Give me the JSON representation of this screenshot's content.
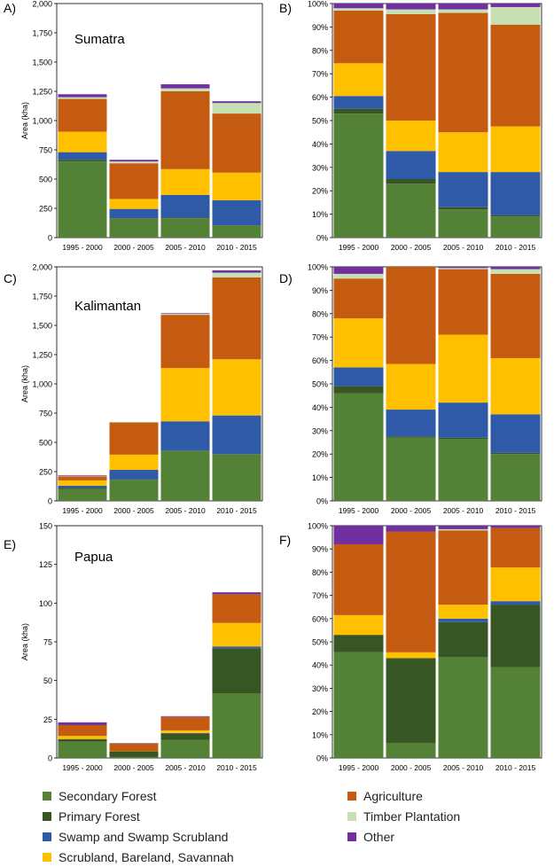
{
  "legend": [
    {
      "name": "Secondary Forest",
      "color": "#538135"
    },
    {
      "name": "Primary Forest",
      "color": "#375623"
    },
    {
      "name": "Swamp and Swamp Scrubland",
      "color": "#2e5aa8"
    },
    {
      "name": "Scrubland, Bareland, Savannah",
      "color": "#ffc000"
    },
    {
      "name": "Agriculture",
      "color": "#c55a11"
    },
    {
      "name": "Timber Plantation",
      "color": "#c6e0b4"
    },
    {
      "name": "Other",
      "color": "#7030a0"
    }
  ],
  "chart_data": [
    {
      "panel": "A)",
      "region": "Sumatra",
      "type": "bar",
      "stacked": true,
      "ylabel": "Area (kha)",
      "ylim": [
        0,
        2000
      ],
      "yticks": [
        "0",
        "250",
        "500",
        "750",
        "1,000",
        "1,250",
        "1,500",
        "1,750",
        "2,000"
      ],
      "categories": [
        "1995 - 2000",
        "2000 - 2005",
        "2005 - 2010",
        "2010 - 2015"
      ],
      "series": [
        {
          "name": "Secondary Forest",
          "values": [
            650,
            160,
            165,
            100
          ]
        },
        {
          "name": "Primary Forest",
          "values": [
            15,
            5,
            5,
            5
          ]
        },
        {
          "name": "Swamp and Swamp Scrubland",
          "values": [
            65,
            80,
            195,
            215
          ]
        },
        {
          "name": "Scrubland, Bareland, Savannah",
          "values": [
            175,
            85,
            220,
            235
          ]
        },
        {
          "name": "Agriculture",
          "values": [
            280,
            305,
            665,
            505
          ]
        },
        {
          "name": "Timber Plantation",
          "values": [
            15,
            15,
            25,
            90
          ]
        },
        {
          "name": "Other",
          "values": [
            25,
            15,
            35,
            15
          ]
        }
      ]
    },
    {
      "panel": "B)",
      "type": "bar",
      "stacked": true,
      "ylim": [
        0,
        100
      ],
      "yticks": [
        "0%",
        "10%",
        "20%",
        "30%",
        "40%",
        "50%",
        "60%",
        "70%",
        "80%",
        "90%",
        "100%"
      ],
      "categories": [
        "1995 - 2000",
        "2000 - 2005",
        "2005 - 2010",
        "2010 - 2015"
      ],
      "series": [
        {
          "name": "Secondary Forest",
          "values": [
            53,
            23,
            12,
            9
          ]
        },
        {
          "name": "Primary Forest",
          "values": [
            2,
            2,
            1,
            0.5
          ]
        },
        {
          "name": "Swamp and Swamp Scrubland",
          "values": [
            5.5,
            12,
            15,
            18.5
          ]
        },
        {
          "name": "Scrubland, Bareland, Savannah",
          "values": [
            14,
            13,
            17,
            19.5
          ]
        },
        {
          "name": "Agriculture",
          "values": [
            22.5,
            45.5,
            51,
            43.5
          ]
        },
        {
          "name": "Timber Plantation",
          "values": [
            1,
            2,
            1.5,
            7.5
          ]
        },
        {
          "name": "Other",
          "values": [
            2,
            2.5,
            2.5,
            1.5
          ]
        }
      ]
    },
    {
      "panel": "C)",
      "region": "Kalimantan",
      "type": "bar",
      "stacked": true,
      "ylabel": "Area (kha)",
      "ylim": [
        0,
        2000
      ],
      "yticks": [
        "0",
        "250",
        "500",
        "750",
        "1,000",
        "1,250",
        "1,500",
        "1,750",
        "2,000"
      ],
      "categories": [
        "1995 - 2000",
        "2000 - 2005",
        "2005 - 2010",
        "2010 - 2015"
      ],
      "series": [
        {
          "name": "Secondary Forest",
          "values": [
            100,
            180,
            425,
            395
          ]
        },
        {
          "name": "Primary Forest",
          "values": [
            10,
            5,
            5,
            5
          ]
        },
        {
          "name": "Swamp and Swamp Scrubland",
          "values": [
            20,
            80,
            250,
            330
          ]
        },
        {
          "name": "Scrubland, Bareland, Savannah",
          "values": [
            45,
            130,
            455,
            480
          ]
        },
        {
          "name": "Agriculture",
          "values": [
            35,
            275,
            455,
            700
          ]
        },
        {
          "name": "Timber Plantation",
          "values": [
            5,
            5,
            10,
            40
          ]
        },
        {
          "name": "Other",
          "values": [
            5,
            0,
            5,
            20
          ]
        }
      ]
    },
    {
      "panel": "D)",
      "type": "bar",
      "stacked": true,
      "ylim": [
        0,
        100
      ],
      "yticks": [
        "0%",
        "10%",
        "20%",
        "30%",
        "40%",
        "50%",
        "60%",
        "70%",
        "80%",
        "90%",
        "100%"
      ],
      "categories": [
        "1995 - 2000",
        "2000 - 2005",
        "2005 - 2010",
        "2010 - 2015"
      ],
      "series": [
        {
          "name": "Secondary Forest",
          "values": [
            46,
            27,
            26.5,
            20
          ]
        },
        {
          "name": "Primary Forest",
          "values": [
            3,
            0.5,
            0.5,
            0.5
          ]
        },
        {
          "name": "Swamp and Swamp Scrubland",
          "values": [
            8,
            11.5,
            15,
            16.5
          ]
        },
        {
          "name": "Scrubland, Bareland, Savannah",
          "values": [
            21,
            19.5,
            29,
            24
          ]
        },
        {
          "name": "Agriculture",
          "values": [
            17,
            41.5,
            28,
            36
          ]
        },
        {
          "name": "Timber Plantation",
          "values": [
            2,
            0,
            0.5,
            2
          ]
        },
        {
          "name": "Other",
          "values": [
            3,
            0,
            0.5,
            1
          ]
        }
      ]
    },
    {
      "panel": "E)",
      "region": "Papua",
      "type": "bar",
      "stacked": true,
      "ylabel": "Area (kha)",
      "ylim": [
        0,
        150
      ],
      "yticks": [
        "0",
        "25",
        "50",
        "75",
        "100",
        "125",
        "150"
      ],
      "categories": [
        "1995 - 2000",
        "2000 - 2005",
        "2005 - 2010",
        "2010 - 2015"
      ],
      "series": [
        {
          "name": "Secondary Forest",
          "values": [
            10.5,
            0.6,
            11.7,
            41.8
          ]
        },
        {
          "name": "Primary Forest",
          "values": [
            1.7,
            3.7,
            4,
            29
          ]
        },
        {
          "name": "Swamp and Swamp Scrubland",
          "values": [
            0,
            0,
            0.4,
            1.2
          ]
        },
        {
          "name": "Scrubland, Bareland, Savannah",
          "values": [
            2,
            0.2,
            1.7,
            15.2
          ]
        },
        {
          "name": "Agriculture",
          "values": [
            7,
            4.8,
            8.6,
            18.5
          ]
        },
        {
          "name": "Timber Plantation",
          "values": [
            0,
            0,
            0.1,
            0
          ]
        },
        {
          "name": "Other",
          "values": [
            1.8,
            0.3,
            0.5,
            1.3
          ]
        }
      ]
    },
    {
      "panel": "F)",
      "type": "bar",
      "stacked": true,
      "ylim": [
        0,
        100
      ],
      "yticks": [
        "0%",
        "10%",
        "20%",
        "30%",
        "40%",
        "50%",
        "60%",
        "70%",
        "80%",
        "90%",
        "100%"
      ],
      "categories": [
        "1995 - 2000",
        "2000 - 2005",
        "2005 - 2010",
        "2010 - 2015"
      ],
      "series": [
        {
          "name": "Secondary Forest",
          "values": [
            45.5,
            6.5,
            43.5,
            39
          ]
        },
        {
          "name": "Primary Forest",
          "values": [
            7.5,
            36.5,
            15,
            27
          ]
        },
        {
          "name": "Swamp and Swamp Scrubland",
          "values": [
            0,
            0,
            1.5,
            1.5
          ]
        },
        {
          "name": "Scrubland, Bareland, Savannah",
          "values": [
            8.5,
            2.5,
            6,
            14.5
          ]
        },
        {
          "name": "Agriculture",
          "values": [
            30.5,
            52,
            32,
            17
          ]
        },
        {
          "name": "Timber Plantation",
          "values": [
            0,
            0,
            0.5,
            0
          ]
        },
        {
          "name": "Other",
          "values": [
            8,
            2.5,
            1.5,
            1
          ]
        }
      ]
    }
  ]
}
